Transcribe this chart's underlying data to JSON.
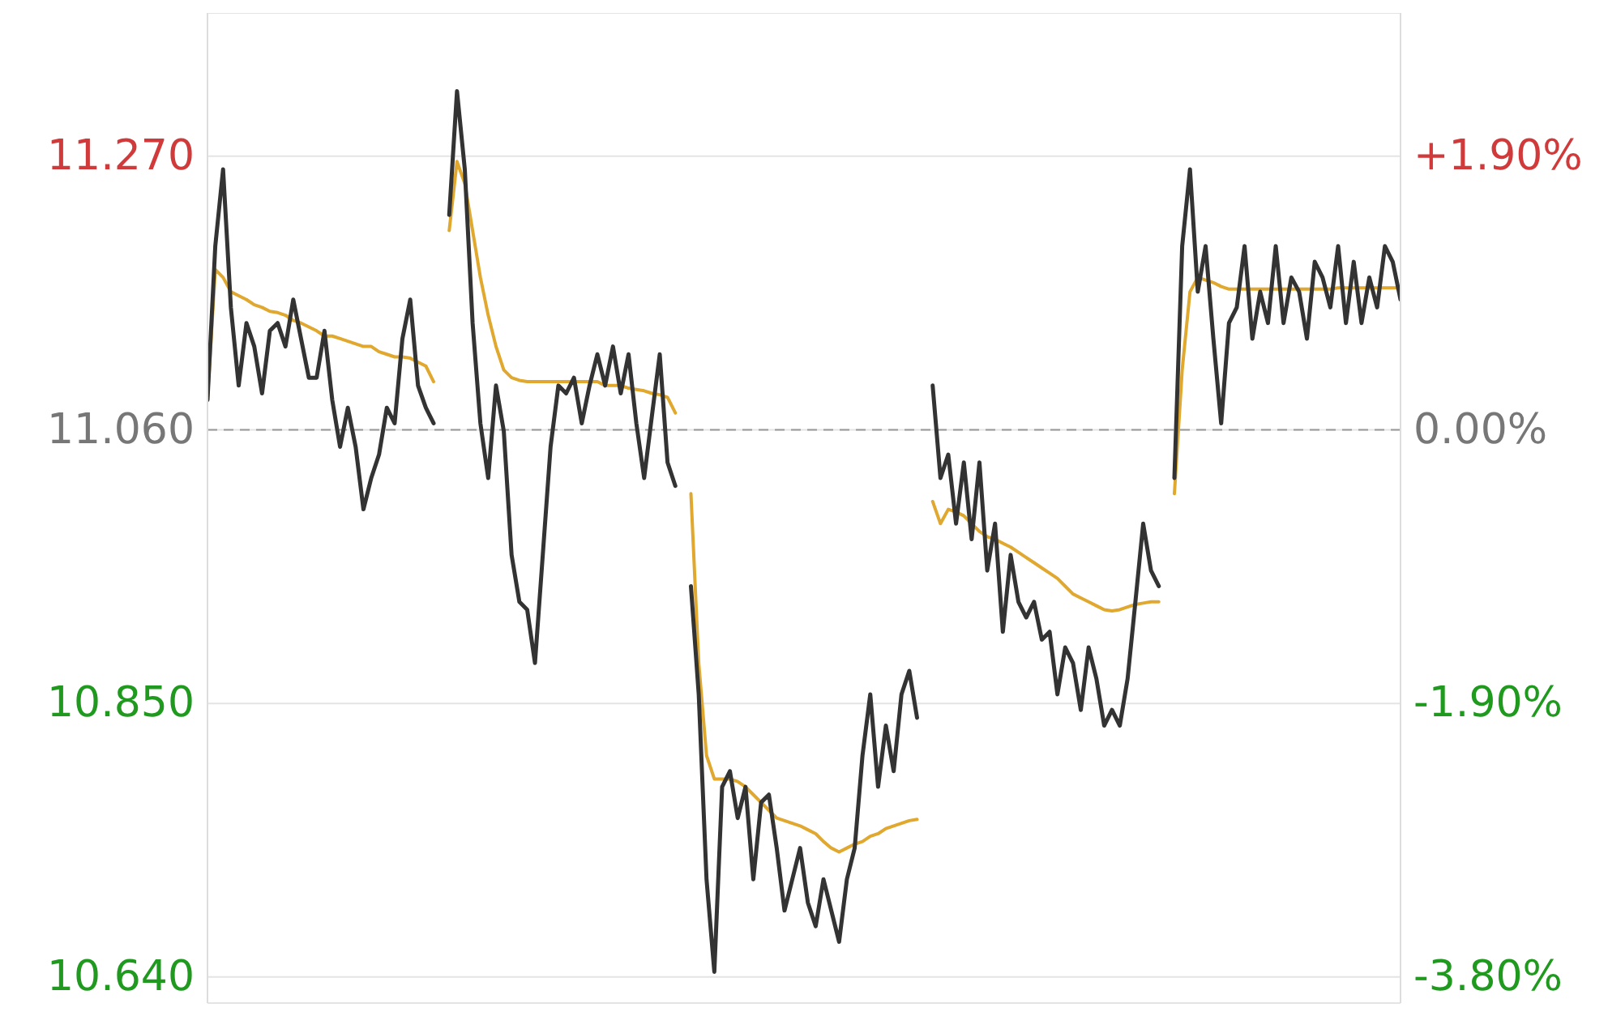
{
  "chart_data": {
    "type": "line",
    "categories": [
      null,
      null,
      null,
      null,
      null,
      null,
      null,
      null,
      null,
      null,
      null,
      null,
      null,
      null,
      null,
      null,
      null,
      null,
      null,
      null,
      null,
      null,
      null,
      null,
      null,
      null,
      null,
      null,
      null,
      null,
      null,
      null,
      null,
      null,
      null,
      null,
      null,
      null,
      null,
      null,
      null,
      null,
      null,
      null,
      null,
      null,
      null,
      null,
      null,
      null,
      null,
      null,
      null,
      null,
      null,
      null,
      null,
      null,
      null,
      null,
      null,
      null,
      null,
      null,
      null,
      null,
      null,
      null,
      null,
      null,
      null,
      null,
      null,
      null,
      null,
      null,
      null,
      null,
      null,
      null,
      null,
      null,
      null,
      null,
      null,
      null,
      null,
      null,
      null,
      null,
      null,
      null,
      null,
      null,
      null,
      null,
      null,
      null,
      null,
      null,
      null,
      null,
      null,
      null,
      null,
      null,
      null,
      null,
      null,
      null,
      null,
      null,
      null,
      null,
      null,
      null,
      null,
      null,
      null,
      null,
      null,
      null,
      null,
      null,
      null,
      null,
      null,
      null,
      null,
      null,
      null,
      null,
      null,
      null,
      null,
      null,
      null,
      null,
      null,
      null,
      null,
      null,
      null,
      null,
      null,
      null,
      null,
      null,
      null,
      null,
      null,
      null,
      null,
      null
    ],
    "series": [
      {
        "color": "#e0a82e",
        "values": [
          11.083,
          11.183,
          11.177,
          11.166,
          11.163,
          11.16,
          11.156,
          11.154,
          11.151,
          11.15,
          11.148,
          11.144,
          11.142,
          11.139,
          11.136,
          11.132,
          11.132,
          11.13,
          11.128,
          11.126,
          11.124,
          11.124,
          11.12,
          11.118,
          11.116,
          11.116,
          11.115,
          11.112,
          11.109,
          11.097,
          null,
          11.213,
          11.266,
          11.249,
          11.213,
          11.177,
          11.148,
          11.124,
          11.106,
          11.1,
          11.098,
          11.097,
          11.097,
          11.097,
          11.097,
          11.097,
          11.097,
          11.097,
          11.097,
          11.097,
          11.097,
          11.094,
          11.094,
          11.094,
          11.092,
          11.091,
          11.09,
          11.088,
          11.087,
          11.085,
          11.073,
          null,
          11.011,
          10.881,
          10.81,
          10.792,
          10.792,
          10.792,
          10.79,
          10.786,
          10.78,
          10.774,
          10.768,
          10.762,
          10.76,
          10.758,
          10.756,
          10.753,
          10.75,
          10.744,
          10.739,
          10.736,
          10.739,
          10.742,
          10.744,
          10.748,
          10.75,
          10.754,
          10.756,
          10.758,
          10.76,
          10.761,
          null,
          11.005,
          10.988,
          10.999,
          10.997,
          10.994,
          10.988,
          10.982,
          10.978,
          10.976,
          10.973,
          10.97,
          10.966,
          10.962,
          10.958,
          10.954,
          10.95,
          10.946,
          10.94,
          10.934,
          10.931,
          10.928,
          10.925,
          10.922,
          10.921,
          10.922,
          10.924,
          10.926,
          10.927,
          10.928,
          10.928,
          null,
          11.011,
          11.106,
          11.166,
          11.177,
          11.175,
          11.173,
          11.17,
          11.168,
          11.168,
          11.168,
          11.168,
          11.168,
          11.168,
          11.168,
          11.168,
          11.168,
          11.168,
          11.168,
          11.168,
          11.168,
          11.168,
          11.169,
          11.169,
          11.169,
          11.169,
          11.169,
          11.169,
          11.169,
          11.169,
          11.169
        ]
      },
      {
        "color": "#333333",
        "values": [
          11.083,
          11.201,
          11.26,
          11.154,
          11.094,
          11.142,
          11.124,
          11.088,
          11.136,
          11.142,
          11.124,
          11.16,
          11.13,
          11.1,
          11.1,
          11.136,
          11.083,
          11.047,
          11.077,
          11.047,
          10.999,
          11.023,
          11.041,
          11.077,
          11.065,
          11.13,
          11.16,
          11.094,
          11.077,
          11.065,
          null,
          11.225,
          11.32,
          11.26,
          11.142,
          11.065,
          11.023,
          11.094,
          11.059,
          10.964,
          10.928,
          10.922,
          10.881,
          10.964,
          11.047,
          11.094,
          11.088,
          11.1,
          11.065,
          11.094,
          11.118,
          11.094,
          11.124,
          11.088,
          11.118,
          11.065,
          11.023,
          11.071,
          11.118,
          11.035,
          11.017,
          null,
          10.94,
          10.857,
          10.715,
          10.644,
          10.786,
          10.798,
          10.762,
          10.786,
          10.715,
          10.774,
          10.78,
          10.739,
          10.691,
          10.715,
          10.739,
          10.697,
          10.679,
          10.715,
          10.691,
          10.667,
          10.715,
          10.739,
          10.81,
          10.857,
          10.786,
          10.833,
          10.798,
          10.857,
          10.875,
          10.839,
          null,
          11.094,
          11.023,
          11.041,
          10.988,
          11.035,
          10.976,
          11.035,
          10.952,
          10.988,
          10.905,
          10.964,
          10.928,
          10.916,
          10.928,
          10.899,
          10.905,
          10.857,
          10.893,
          10.881,
          10.845,
          10.893,
          10.869,
          10.833,
          10.845,
          10.833,
          10.869,
          10.928,
          10.988,
          10.952,
          10.94,
          null,
          11.023,
          11.201,
          11.26,
          11.166,
          11.201,
          11.13,
          11.065,
          11.142,
          11.154,
          11.201,
          11.13,
          11.166,
          11.142,
          11.201,
          11.142,
          11.177,
          11.166,
          11.13,
          11.189,
          11.177,
          11.154,
          11.201,
          11.142,
          11.189,
          11.142,
          11.177,
          11.154,
          11.201,
          11.189,
          11.16
        ]
      }
    ],
    "ylim": [
      10.62,
      11.38
    ],
    "yticks": [
      {
        "value": 10.64,
        "label": "10.640"
      },
      {
        "value": 10.85,
        "label": "10.850"
      },
      {
        "value": 11.06,
        "label": "11.060"
      },
      {
        "value": 11.27,
        "label": "11.270"
      }
    ],
    "y2lim": [
      -3.978,
      2.893
    ],
    "y2ticks": [
      {
        "value": -3.8,
        "label": "-3.80%"
      },
      {
        "value": -1.9,
        "label": "-1.90%"
      },
      {
        "value": 0,
        "label": "0.00%"
      },
      {
        "value": 1.9,
        "label": "+1.90%"
      }
    ],
    "ref_lines": [
      {
        "axis": "y",
        "value": 11.06,
        "color": "#999999",
        "line_style": "dashed"
      }
    ],
    "grid": true,
    "marker": "none",
    "line_style": "solid",
    "tick_labels": "y"
  }
}
